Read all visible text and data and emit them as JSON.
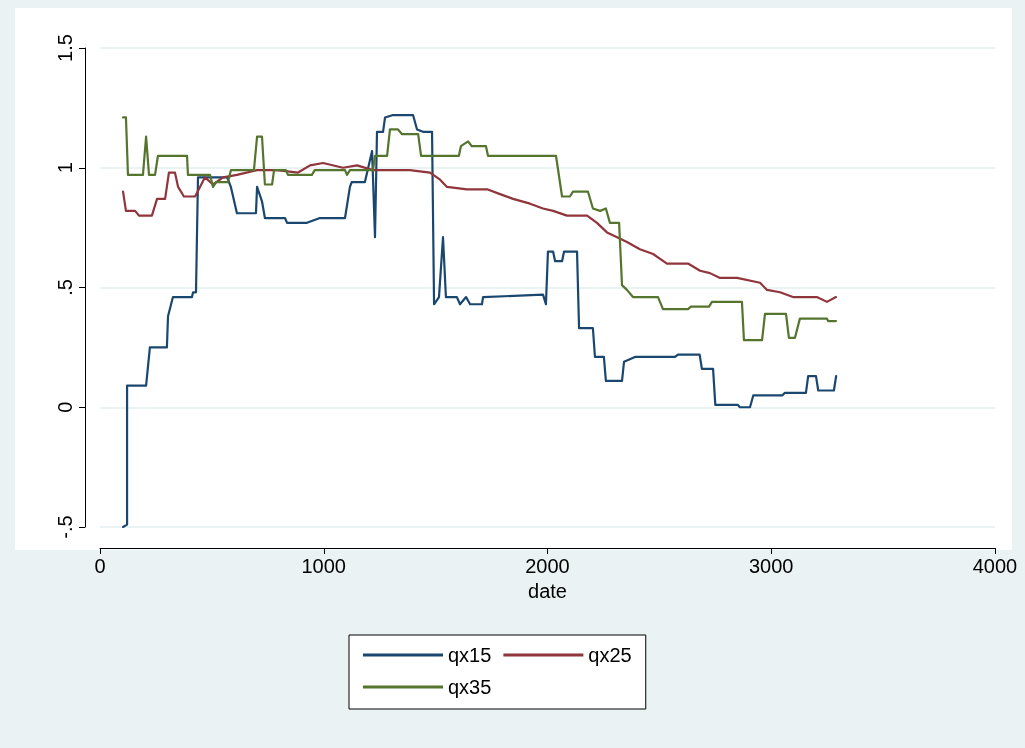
{
  "chart_data": {
    "type": "line",
    "xlabel": "date",
    "xlim": [
      0,
      4000
    ],
    "xticks": [
      0,
      1000,
      2000,
      3000,
      4000
    ],
    "ylim": [
      -0.5,
      1.5
    ],
    "yticks": [
      {
        "value": -0.5,
        "label": "-.5"
      },
      0,
      {
        "value": 0.5,
        "label": ".5"
      },
      1,
      {
        "value": 1.5,
        "label": "1.5"
      }
    ],
    "grid": "y",
    "legend": "bottom",
    "marker": "none",
    "line_style": "solid",
    "series": [
      {
        "name": "qx15",
        "color": "#1a476f",
        "x": [
          103,
          121,
          121,
          206,
          223,
          299,
          304,
          326,
          411,
          416,
          429,
          438,
          568,
          585,
          612,
          697,
          702,
          724,
          737,
          827,
          836,
          925,
          983,
          1095,
          1117,
          1125,
          1184,
          1216,
          1229,
          1238,
          1265,
          1274,
          1310,
          1399,
          1417,
          1444,
          1484,
          1493,
          1515,
          1533,
          1546,
          1595,
          1609,
          1636,
          1654,
          1707,
          1712,
          1980,
          1993,
          2002,
          2025,
          2034,
          2065,
          2074,
          2132,
          2141,
          2203,
          2212,
          2252,
          2261,
          2333,
          2342,
          2391,
          2570,
          2583,
          2680,
          2690,
          2740,
          2750,
          2850,
          2860,
          2905,
          2920,
          3050,
          3060,
          3155,
          3165,
          3200,
          3210,
          3280,
          3290
        ],
        "values": [
          -0.5,
          -0.49,
          0.09,
          0.09,
          0.25,
          0.25,
          0.38,
          0.46,
          0.46,
          0.48,
          0.48,
          0.96,
          0.96,
          0.92,
          0.81,
          0.81,
          0.92,
          0.86,
          0.79,
          0.79,
          0.77,
          0.77,
          0.79,
          0.79,
          0.92,
          0.94,
          0.94,
          1.07,
          0.71,
          1.15,
          1.15,
          1.21,
          1.22,
          1.22,
          1.16,
          1.15,
          1.15,
          0.43,
          0.46,
          0.71,
          0.46,
          0.46,
          0.43,
          0.46,
          0.43,
          0.43,
          0.46,
          0.47,
          0.43,
          0.65,
          0.65,
          0.61,
          0.61,
          0.65,
          0.65,
          0.33,
          0.33,
          0.21,
          0.21,
          0.11,
          0.11,
          0.19,
          0.21,
          0.21,
          0.22,
          0.22,
          0.16,
          0.16,
          0.01,
          0.01,
          0.0,
          0.0,
          0.05,
          0.05,
          0.06,
          0.06,
          0.13,
          0.13,
          0.07,
          0.07,
          0.13
        ]
      },
      {
        "name": "qx25",
        "color": "#90353b",
        "x": [
          103,
          116,
          157,
          174,
          232,
          255,
          291,
          308,
          335,
          349,
          375,
          425,
          447,
          469,
          505,
          550,
          612,
          702,
          791,
          885,
          939,
          997,
          1086,
          1149,
          1220,
          1251,
          1385,
          1475,
          1520,
          1551,
          1640,
          1730,
          1788,
          1846,
          1922,
          1980,
          2025,
          2087,
          2177,
          2221,
          2266,
          2311,
          2355,
          2413,
          2472,
          2534,
          2628,
          2682,
          2726,
          2771,
          2847,
          2950,
          2981,
          3039,
          3097,
          3204,
          3249,
          3289
        ],
        "values": [
          0.9,
          0.82,
          0.82,
          0.8,
          0.8,
          0.87,
          0.87,
          0.98,
          0.98,
          0.92,
          0.88,
          0.88,
          0.92,
          0.96,
          0.93,
          0.96,
          0.97,
          0.99,
          0.99,
          0.98,
          1.01,
          1.02,
          1.0,
          1.01,
          0.99,
          0.99,
          0.99,
          0.98,
          0.95,
          0.92,
          0.91,
          0.91,
          0.89,
          0.87,
          0.85,
          0.83,
          0.82,
          0.8,
          0.8,
          0.77,
          0.73,
          0.71,
          0.69,
          0.66,
          0.64,
          0.6,
          0.6,
          0.57,
          0.56,
          0.54,
          0.54,
          0.52,
          0.49,
          0.48,
          0.46,
          0.46,
          0.44,
          0.46
        ]
      },
      {
        "name": "qx35",
        "color": "#55752f",
        "x": [
          103,
          116,
          125,
          192,
          206,
          219,
          246,
          259,
          389,
          393,
          492,
          505,
          519,
          572,
          585,
          688,
          702,
          724,
          737,
          769,
          778,
          831,
          840,
          947,
          960,
          1095,
          1104,
          1117,
          1220,
          1229,
          1283,
          1296,
          1332,
          1350,
          1422,
          1435,
          1604,
          1613,
          1645,
          1662,
          1725,
          1734,
          1989,
          2013,
          2038,
          2065,
          2100,
          2114,
          2181,
          2203,
          2235,
          2261,
          2279,
          2320,
          2333,
          2355,
          2382,
          2494,
          2516,
          2628,
          2641,
          2722,
          2735,
          2869,
          2878,
          2959,
          2972,
          3066,
          3079,
          3106,
          3128,
          3249,
          3254,
          3289
        ],
        "values": [
          1.21,
          1.21,
          0.97,
          0.97,
          1.13,
          0.97,
          0.97,
          1.05,
          1.05,
          0.97,
          0.97,
          0.92,
          0.94,
          0.94,
          0.99,
          0.99,
          1.13,
          1.13,
          0.93,
          0.93,
          0.99,
          0.99,
          0.97,
          0.97,
          0.99,
          0.99,
          0.97,
          0.99,
          0.99,
          1.05,
          1.05,
          1.16,
          1.16,
          1.14,
          1.14,
          1.05,
          1.05,
          1.09,
          1.11,
          1.09,
          1.09,
          1.05,
          1.05,
          1.05,
          1.05,
          0.88,
          0.88,
          0.9,
          0.9,
          0.83,
          0.82,
          0.83,
          0.77,
          0.77,
          0.51,
          0.49,
          0.46,
          0.46,
          0.41,
          0.41,
          0.42,
          0.42,
          0.44,
          0.44,
          0.28,
          0.28,
          0.39,
          0.39,
          0.29,
          0.29,
          0.37,
          0.37,
          0.36,
          0.36
        ]
      }
    ]
  }
}
